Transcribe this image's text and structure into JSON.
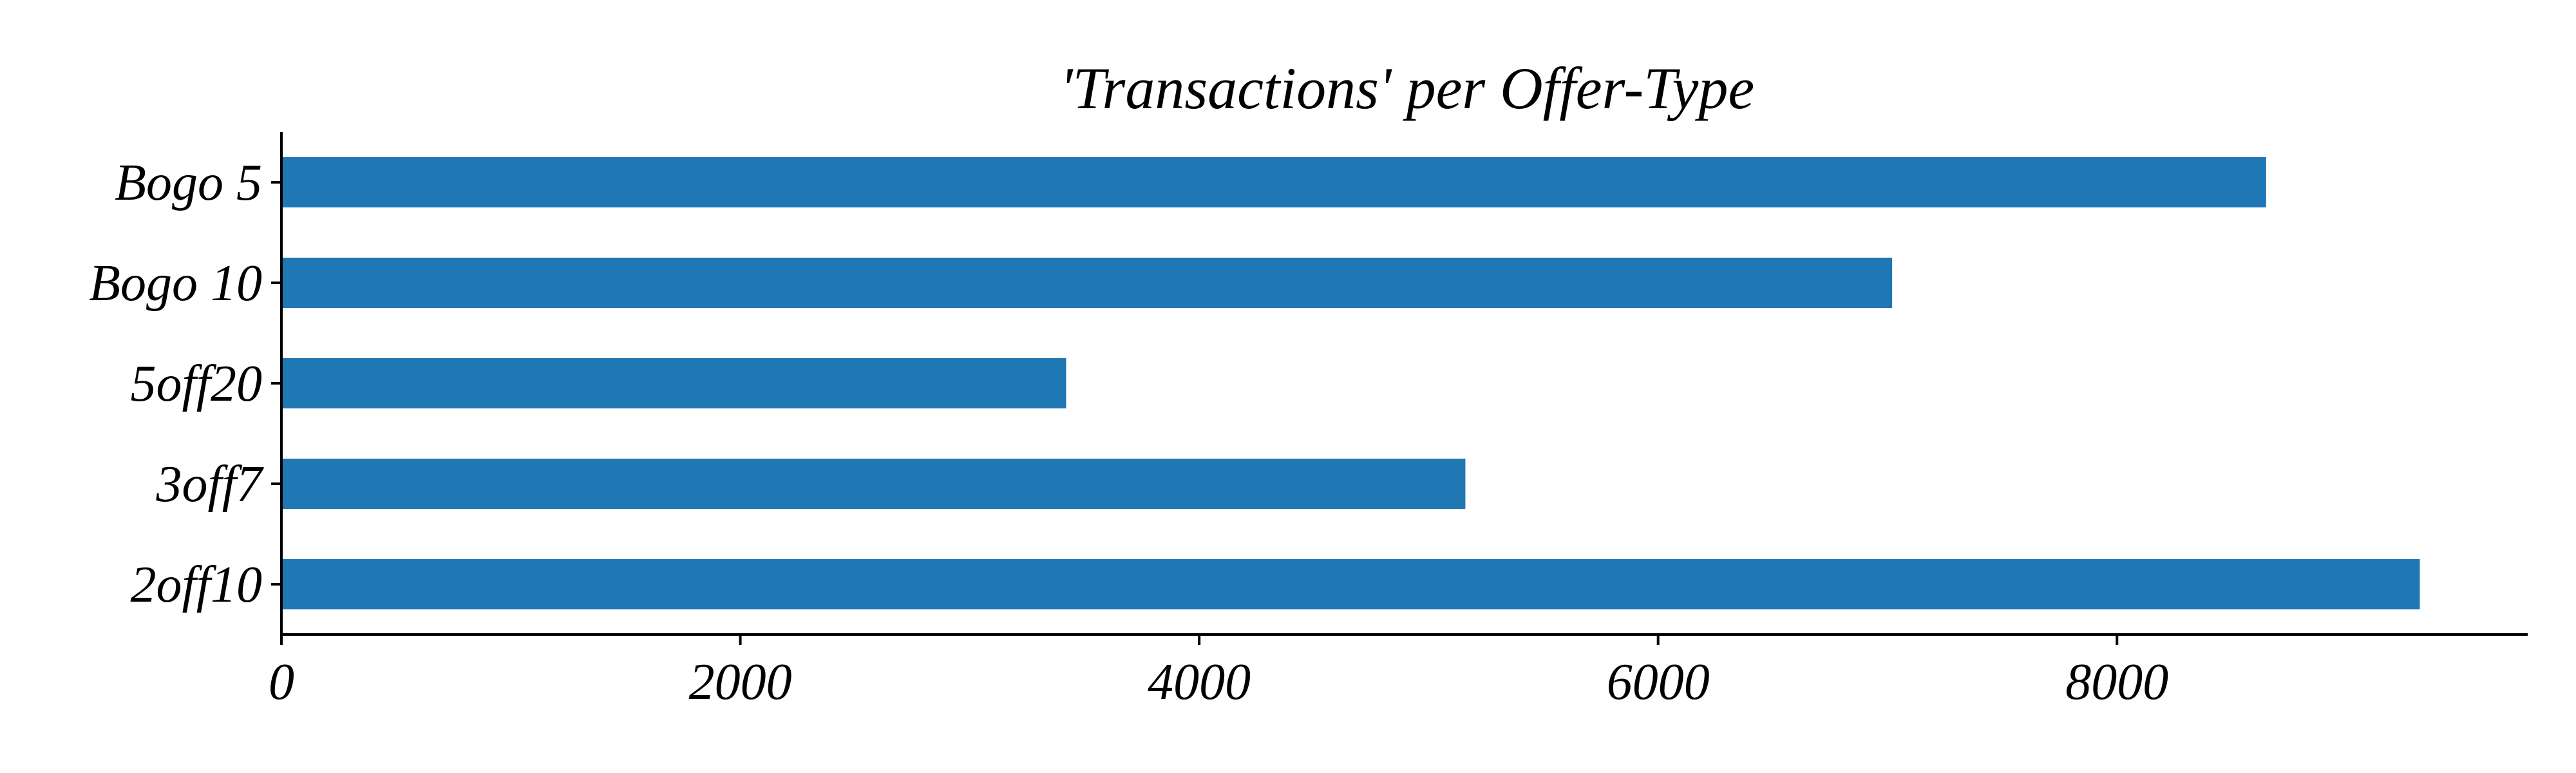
{
  "chart_data": {
    "type": "bar",
    "orientation": "horizontal",
    "title": "'Transactions' per Offer-Type",
    "xlabel": "",
    "ylabel": "",
    "categories": [
      "Bogo 5",
      "Bogo 10",
      "5off20",
      "3off7",
      "2off10"
    ],
    "values": [
      8650,
      7020,
      3420,
      5160,
      9320
    ],
    "xlim": [
      0,
      9790
    ],
    "xticks": [
      0,
      2000,
      4000,
      6000,
      8000
    ],
    "grid": false,
    "legend": "none",
    "colors": {
      "bar": "#1f77b4",
      "axis": "#000000",
      "text": "#000000"
    }
  }
}
